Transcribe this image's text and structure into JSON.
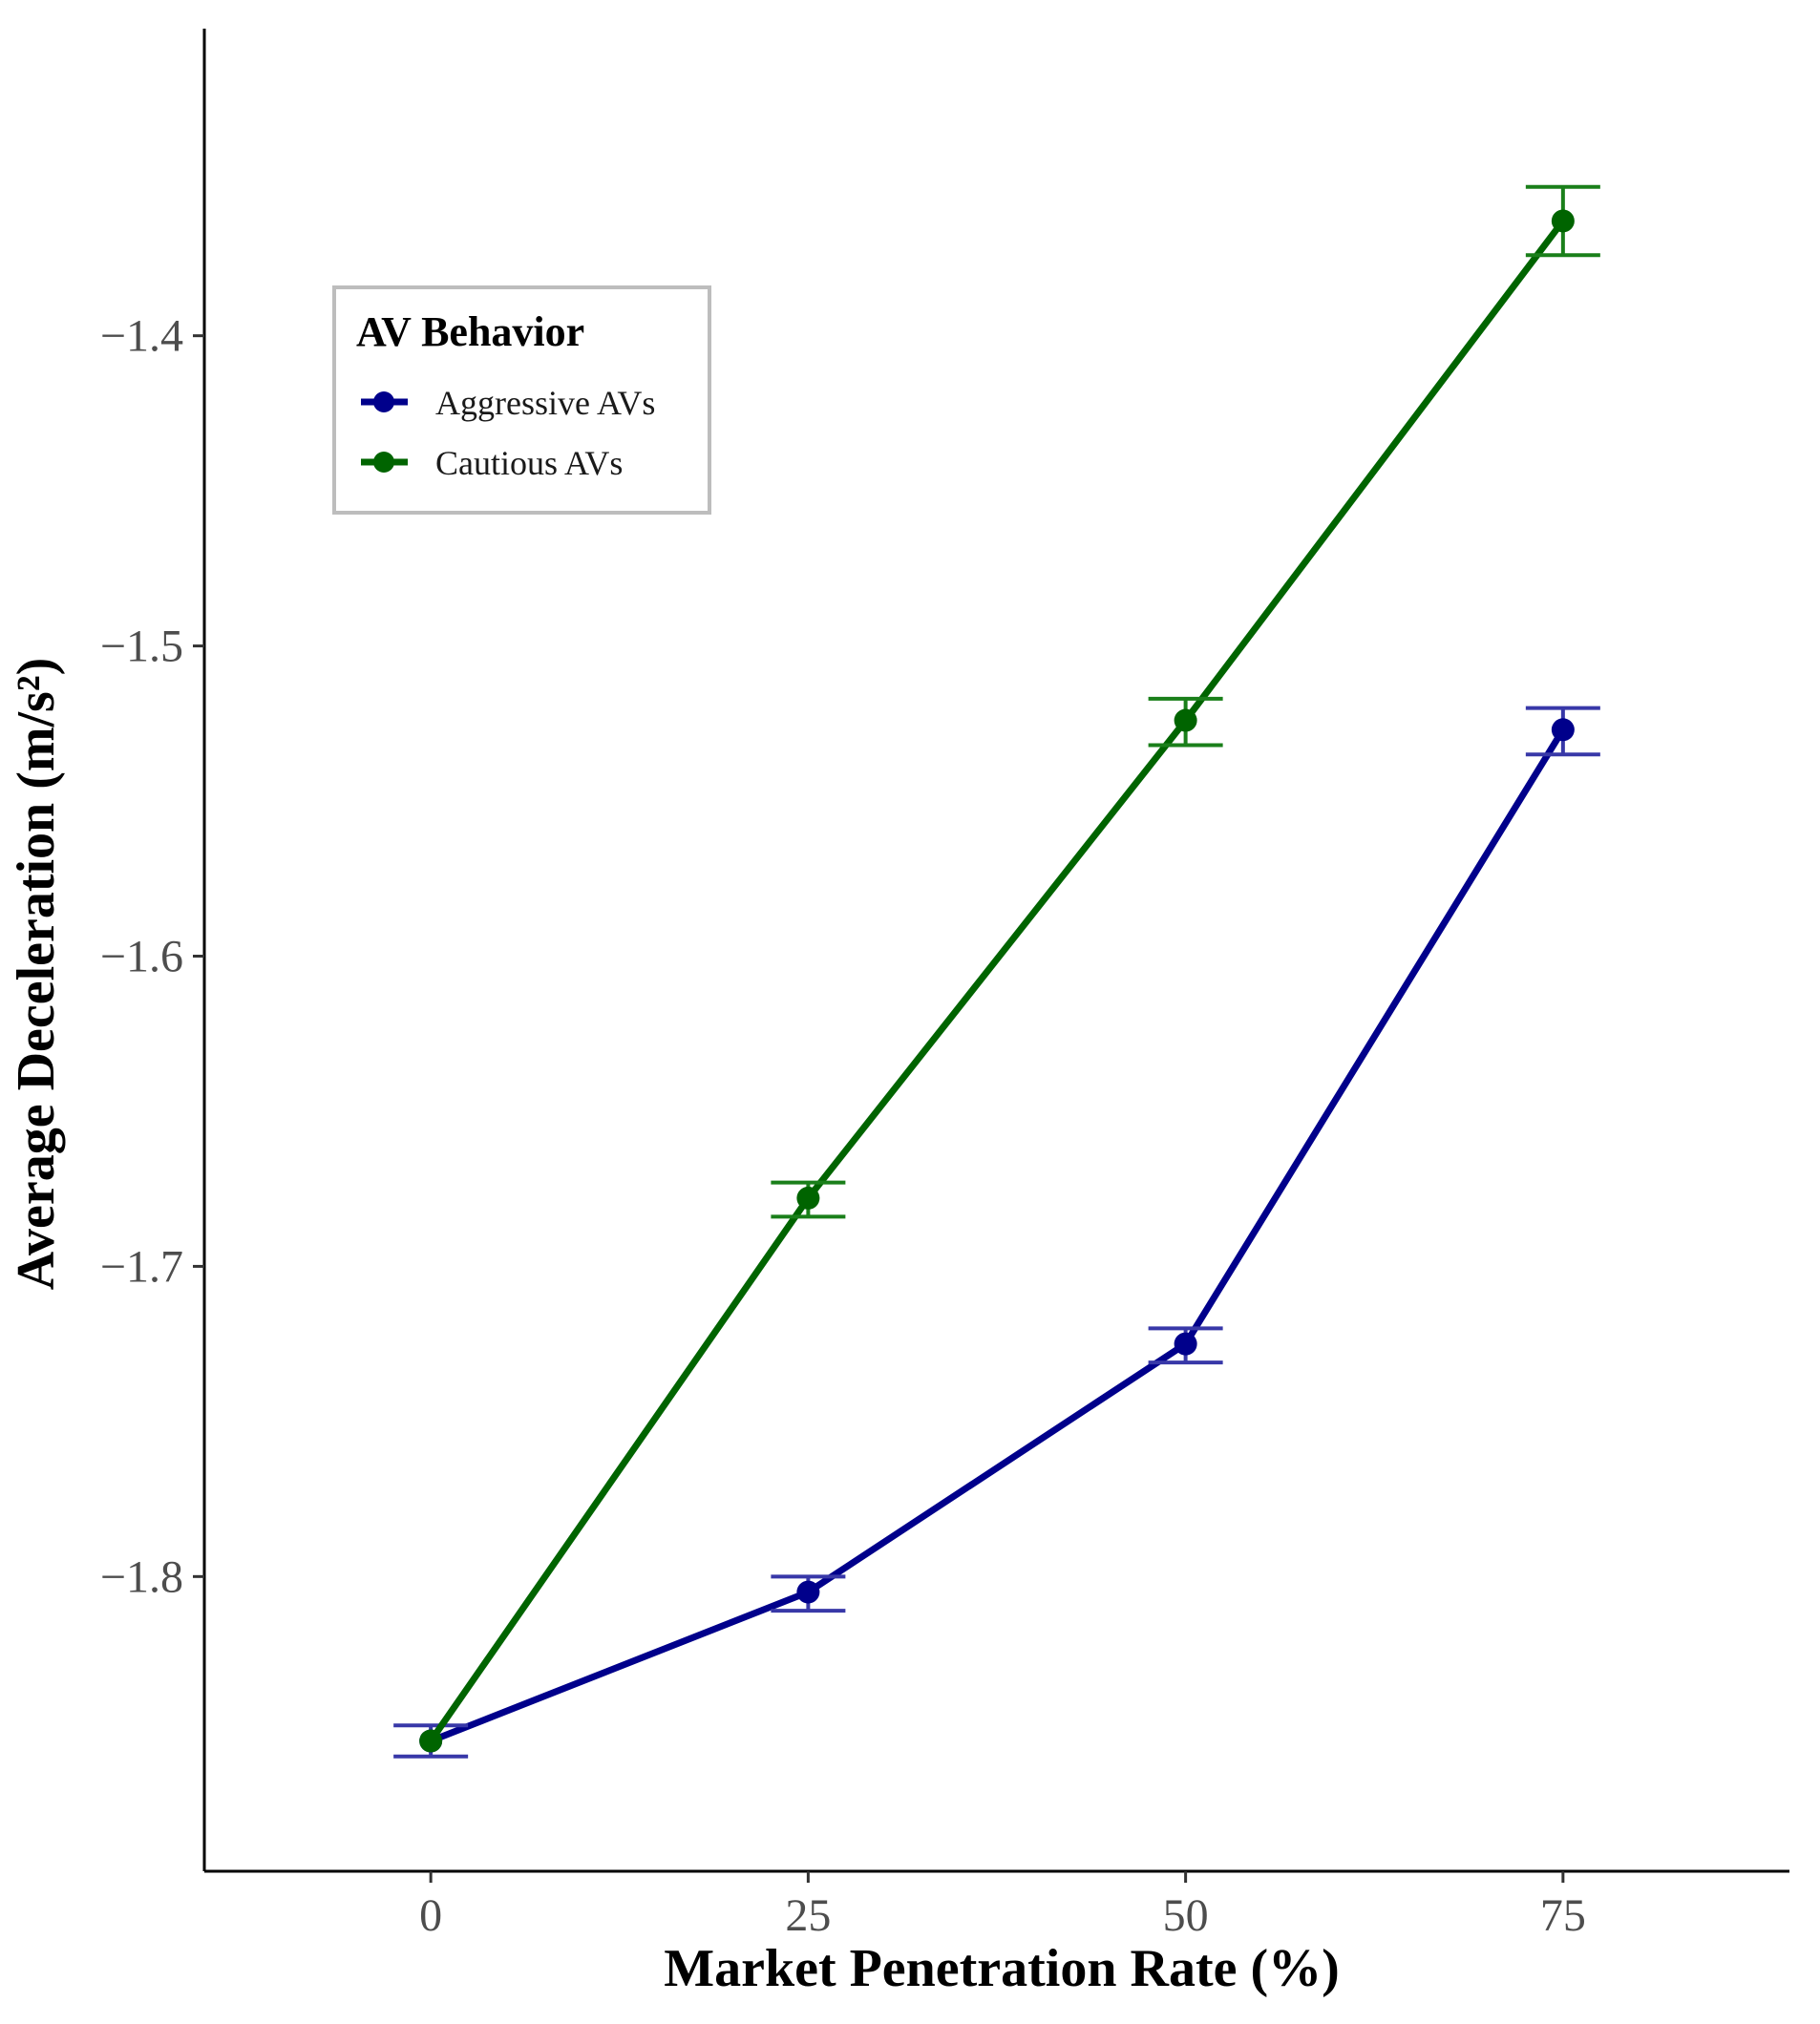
{
  "chart_data": {
    "type": "line",
    "x": [
      0,
      25,
      50,
      75
    ],
    "xlabel": "Market Penetration Rate (%)",
    "ylabel": "Average Deceleration (m/s²)",
    "xlim": [
      -15,
      90
    ],
    "ylim": [
      -1.895,
      -1.301
    ],
    "xticks": [
      0,
      25,
      50,
      75
    ],
    "xtick_labels": [
      "0",
      "25",
      "50",
      "75"
    ],
    "yticks": [
      -1.8,
      -1.7,
      -1.6,
      -1.5,
      -1.4
    ],
    "ytick_labels": [
      "−1.8",
      "−1.7",
      "−1.6",
      "−1.5",
      "−1.4"
    ],
    "grid": false,
    "legend": {
      "title": "AV Behavior",
      "position": "upper-left",
      "entries": [
        "Aggressive AVs",
        "Cautious AVs"
      ]
    },
    "series": [
      {
        "name": "Aggressive AVs",
        "color": "#00008B",
        "error_color": "#3838A8",
        "values": [
          -1.853,
          -1.805,
          -1.725,
          -1.527
        ],
        "err_low": [
          -1.858,
          -1.811,
          -1.731,
          -1.535
        ],
        "err_high": [
          -1.848,
          -1.8,
          -1.72,
          -1.52
        ]
      },
      {
        "name": "Cautious AVs",
        "color": "#006400",
        "error_color": "#1A7F1A",
        "values": [
          -1.853,
          -1.678,
          -1.524,
          -1.363
        ],
        "err_low": [
          -1.853,
          -1.684,
          -1.532,
          -1.374
        ],
        "err_high": [
          -1.853,
          -1.673,
          -1.517,
          -1.352
        ]
      }
    ]
  }
}
